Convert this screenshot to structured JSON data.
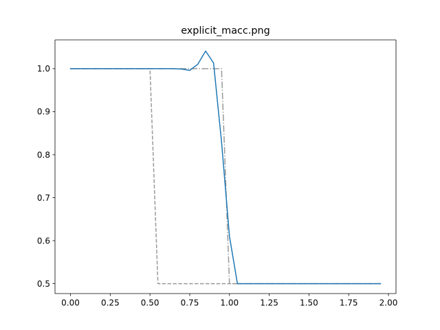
{
  "chart_data": {
    "type": "line",
    "title": "explicit_macc.png",
    "xlabel": "",
    "ylabel": "",
    "xlim": [
      -0.0975,
      2.0475
    ],
    "ylim": [
      0.477,
      1.067
    ],
    "x_ticks": [
      0.0,
      0.25,
      0.5,
      0.75,
      1.0,
      1.25,
      1.5,
      1.75,
      2.0
    ],
    "x_tick_labels": [
      "0.00",
      "0.25",
      "0.50",
      "0.75",
      "1.00",
      "1.25",
      "1.50",
      "1.75",
      "2.00"
    ],
    "y_ticks": [
      0.5,
      0.6,
      0.7,
      0.8,
      0.9,
      1.0
    ],
    "y_tick_labels": [
      "0.5",
      "0.6",
      "0.7",
      "0.8",
      "0.9",
      "1.0"
    ],
    "grid": false,
    "legend": "none",
    "series": [
      {
        "style": "solid",
        "color": "#1f77b4",
        "x": [
          0.0,
          0.05,
          0.1,
          0.15,
          0.2,
          0.25,
          0.3,
          0.35,
          0.4,
          0.45,
          0.5,
          0.55,
          0.6,
          0.65,
          0.7,
          0.75,
          0.8,
          0.85,
          0.9,
          0.95,
          1.0,
          1.05,
          1.1,
          1.15,
          1.2,
          1.25,
          1.3,
          1.35,
          1.4,
          1.45,
          1.5,
          1.55,
          1.6,
          1.65,
          1.7,
          1.75,
          1.8,
          1.85,
          1.9,
          1.95
        ],
        "y": [
          1.0,
          1.0,
          1.0,
          1.0,
          1.0,
          1.0,
          1.0,
          1.0,
          1.0,
          1.0,
          1.0,
          1.0,
          1.0,
          1.0,
          0.999,
          0.996,
          1.01,
          1.041,
          1.013,
          0.83,
          0.61,
          0.5,
          0.5,
          0.5,
          0.5,
          0.5,
          0.5,
          0.5,
          0.5,
          0.5,
          0.5,
          0.5,
          0.5,
          0.5,
          0.5,
          0.5,
          0.5,
          0.5,
          0.5,
          0.5
        ]
      },
      {
        "style": "dashed",
        "color": "#999999",
        "x": [
          0.0,
          0.5,
          0.55,
          1.95
        ],
        "y": [
          1.0,
          1.0,
          0.5,
          0.5
        ]
      },
      {
        "style": "dashdot",
        "color": "#999999",
        "x": [
          0.0,
          0.95,
          1.0,
          1.95
        ],
        "y": [
          1.0,
          1.0,
          0.5,
          0.5
        ]
      }
    ]
  }
}
